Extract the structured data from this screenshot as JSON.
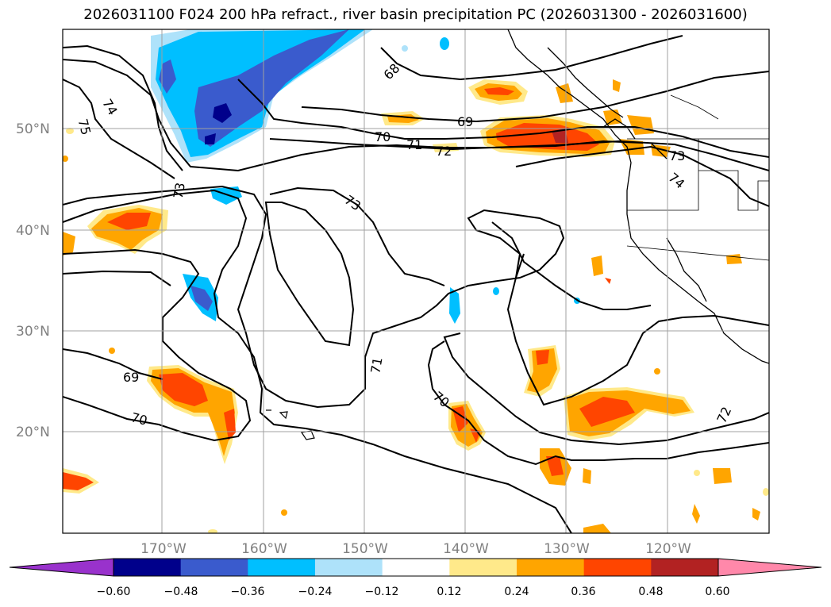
{
  "title": "2026031100 F024 200 hPa refract., river basin precipitation PC (2026031300 - 2026031600)",
  "lat_labels": [
    "50°N",
    "40°N",
    "30°N",
    "20°N"
  ],
  "lon_labels": [
    "170°W",
    "160°W",
    "150°W",
    "140°W",
    "130°W",
    "120°W"
  ],
  "contour_labels": [
    "68",
    "69",
    "70",
    "71",
    "72",
    "73",
    "73",
    "73",
    "74",
    "74",
    "75",
    "69",
    "70",
    "71",
    "70",
    "72"
  ],
  "colorbar": {
    "ticks": [
      "−0.60",
      "−0.48",
      "−0.36",
      "−0.24",
      "−0.12",
      "0.12",
      "0.24",
      "0.36",
      "0.48",
      "0.60"
    ],
    "colors": [
      "#9932cc",
      "#00008b",
      "#3a5bcd",
      "#00bfff",
      "#aee2fa",
      "#ffffff",
      "#ffe98a",
      "#ffa500",
      "#ff4500",
      "#b22222",
      "#ff88aa"
    ]
  }
}
